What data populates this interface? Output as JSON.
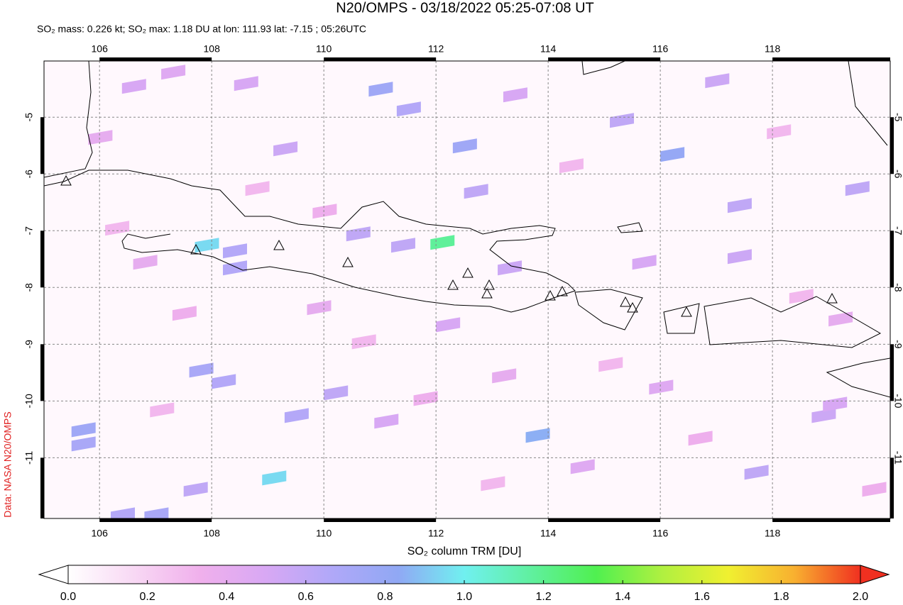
{
  "chart_data": {
    "type": "map",
    "title": "N20/OMPS - 03/18/2022 05:25-07:08 UT",
    "subtitle": "SO₂ mass: 0.226 kt; SO₂ max: 1.18 DU at lon: 111.93 lat: -7.15 ; 05:26UTC",
    "colorbar_label": "SO₂ column TRM [DU]",
    "credit": "Data: NASA N20/OMPS",
    "xlim": [
      105.01,
      120.1
    ],
    "ylim": [
      -12.07,
      -4.01
    ],
    "xticks": [
      106,
      108,
      110,
      112,
      114,
      116,
      118
    ],
    "yticks": [
      -5,
      -6,
      -7,
      -8,
      -9,
      -10,
      -11
    ],
    "grid": true,
    "colormap": [
      "#ffffff",
      "#f8d8f4",
      "#f0b0ec",
      "#d8a8f4",
      "#b0a8f8",
      "#90a8f4",
      "#70f0f0",
      "#60f0a0",
      "#50f050",
      "#b0f040",
      "#f0f030",
      "#f8b030",
      "#f03020"
    ],
    "cticks": [
      {
        "value": 0,
        "label": "0.0"
      },
      0.2,
      0.4,
      0.6,
      0.8,
      {
        "value": 1,
        "label": "1.0"
      },
      1.2,
      1.4,
      1.6,
      1.8,
      {
        "value": 2,
        "label": "2.0"
      }
    ],
    "pixels": [
      {
        "lon": 107.7,
        "lat": -7.2,
        "value": 0.95
      },
      {
        "lon": 111.9,
        "lat": -7.15,
        "value": 1.18
      },
      {
        "lon": 108.9,
        "lat": -11.3,
        "value": 0.95
      },
      {
        "lon": 113.6,
        "lat": -10.55,
        "value": 0.85
      },
      {
        "lon": 110.8,
        "lat": -4.45,
        "value": 0.75
      },
      {
        "lon": 111.3,
        "lat": -4.8,
        "value": 0.65
      },
      {
        "lon": 112.3,
        "lat": -5.45,
        "value": 0.75
      },
      {
        "lon": 116.0,
        "lat": -5.6,
        "value": 0.8
      },
      {
        "lon": 108.2,
        "lat": -7.3,
        "value": 0.65
      },
      {
        "lon": 108.2,
        "lat": -7.6,
        "value": 0.65
      },
      {
        "lon": 110.4,
        "lat": -7.0,
        "value": 0.6
      },
      {
        "lon": 111.2,
        "lat": -7.2,
        "value": 0.6
      },
      {
        "lon": 109.3,
        "lat": -10.2,
        "value": 0.65
      },
      {
        "lon": 110.0,
        "lat": -9.8,
        "value": 0.6
      },
      {
        "lon": 107.6,
        "lat": -9.4,
        "value": 0.7
      },
      {
        "lon": 108.0,
        "lat": -9.6,
        "value": 0.65
      },
      {
        "lon": 105.5,
        "lat": -10.45,
        "value": 0.75
      },
      {
        "lon": 105.5,
        "lat": -10.7,
        "value": 0.7
      },
      {
        "lon": 106.2,
        "lat": -11.95,
        "value": 0.65
      },
      {
        "lon": 106.8,
        "lat": -11.95,
        "value": 0.7
      },
      {
        "lon": 107.5,
        "lat": -11.5,
        "value": 0.6
      },
      {
        "lon": 116.8,
        "lat": -4.3,
        "value": 0.55
      },
      {
        "lon": 117.2,
        "lat": -6.5,
        "value": 0.6
      },
      {
        "lon": 115.1,
        "lat": -5.0,
        "value": 0.6
      },
      {
        "lon": 113.2,
        "lat": -4.55,
        "value": 0.5
      },
      {
        "lon": 119.3,
        "lat": -6.2,
        "value": 0.6
      },
      {
        "lon": 115.5,
        "lat": -7.5,
        "value": 0.5
      },
      {
        "lon": 117.2,
        "lat": -7.4,
        "value": 0.55
      },
      {
        "lon": 118.7,
        "lat": -10.2,
        "value": 0.55
      },
      {
        "lon": 117.5,
        "lat": -11.2,
        "value": 0.6
      },
      {
        "lon": 118.9,
        "lat": -10.0,
        "value": 0.5
      },
      {
        "lon": 106.4,
        "lat": -4.4,
        "value": 0.5
      },
      {
        "lon": 107.1,
        "lat": -4.15,
        "value": 0.45
      },
      {
        "lon": 108.4,
        "lat": -4.35,
        "value": 0.5
      },
      {
        "lon": 109.1,
        "lat": -5.5,
        "value": 0.55
      },
      {
        "lon": 112.5,
        "lat": -6.25,
        "value": 0.6
      },
      {
        "lon": 113.1,
        "lat": -7.6,
        "value": 0.55
      },
      {
        "lon": 112.0,
        "lat": -8.6,
        "value": 0.5
      },
      {
        "lon": 110.9,
        "lat": -10.3,
        "value": 0.5
      },
      {
        "lon": 114.4,
        "lat": -11.1,
        "value": 0.45
      },
      {
        "lon": 106.6,
        "lat": -7.5,
        "value": 0.4
      },
      {
        "lon": 109.7,
        "lat": -8.3,
        "value": 0.4
      },
      {
        "lon": 113.0,
        "lat": -9.5,
        "value": 0.4
      },
      {
        "lon": 115.8,
        "lat": -9.7,
        "value": 0.45
      },
      {
        "lon": 119.0,
        "lat": -8.5,
        "value": 0.4
      },
      {
        "lon": 105.8,
        "lat": -5.3,
        "value": 0.4
      },
      {
        "lon": 106.1,
        "lat": -6.9,
        "value": 0.3
      },
      {
        "lon": 107.3,
        "lat": -8.4,
        "value": 0.35
      },
      {
        "lon": 108.6,
        "lat": -6.2,
        "value": 0.3
      },
      {
        "lon": 109.8,
        "lat": -6.6,
        "value": 0.35
      },
      {
        "lon": 110.5,
        "lat": -8.9,
        "value": 0.3
      },
      {
        "lon": 111.6,
        "lat": -9.9,
        "value": 0.35
      },
      {
        "lon": 112.8,
        "lat": -11.4,
        "value": 0.3
      },
      {
        "lon": 114.2,
        "lat": -5.8,
        "value": 0.3
      },
      {
        "lon": 114.9,
        "lat": -9.3,
        "value": 0.3
      },
      {
        "lon": 116.5,
        "lat": -10.6,
        "value": 0.35
      },
      {
        "lon": 117.9,
        "lat": -5.2,
        "value": 0.3
      },
      {
        "lon": 118.3,
        "lat": -8.1,
        "value": 0.3
      },
      {
        "lon": 119.6,
        "lat": -11.5,
        "value": 0.35
      },
      {
        "lon": 106.9,
        "lat": -10.1,
        "value": 0.3
      }
    ]
  }
}
